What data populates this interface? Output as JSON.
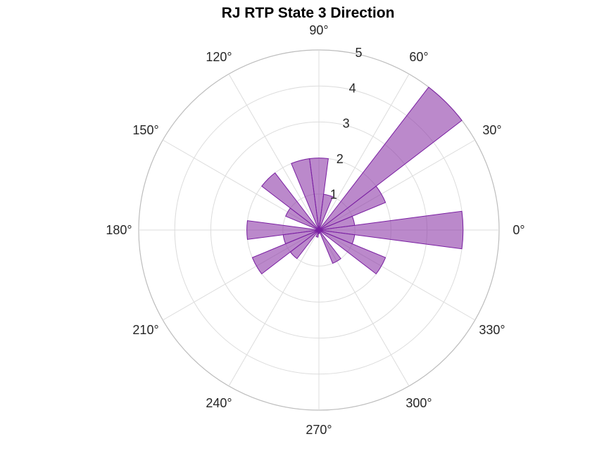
{
  "chart_data": {
    "type": "polar-histogram",
    "title": "RJ  RTP State 3 Direction",
    "r_ticks": [
      1,
      2,
      3,
      4,
      5
    ],
    "r_tick_labels": [
      "1",
      "2",
      "3",
      "4",
      "5"
    ],
    "r_max": 5,
    "theta_ticks_deg": [
      0,
      30,
      60,
      90,
      120,
      150,
      180,
      210,
      240,
      270,
      300,
      330
    ],
    "theta_tick_labels": [
      "0°",
      "30°",
      "60°",
      "90°",
      "120°",
      "150°",
      "180°",
      "210°",
      "240°",
      "270°",
      "300°",
      "330°"
    ],
    "bin_width_deg": 15,
    "bins": [
      {
        "center_deg": 0,
        "value": 4
      },
      {
        "center_deg": 15,
        "value": 1
      },
      {
        "center_deg": 30,
        "value": 2
      },
      {
        "center_deg": 45,
        "value": 5
      },
      {
        "center_deg": 75,
        "value": 1
      },
      {
        "center_deg": 90,
        "value": 2
      },
      {
        "center_deg": 105,
        "value": 2
      },
      {
        "center_deg": 135,
        "value": 2
      },
      {
        "center_deg": 150,
        "value": 1
      },
      {
        "center_deg": 180,
        "value": 2
      },
      {
        "center_deg": 195,
        "value": 1
      },
      {
        "center_deg": 210,
        "value": 2
      },
      {
        "center_deg": 225,
        "value": 1
      },
      {
        "center_deg": 255,
        "value": 0.2
      },
      {
        "center_deg": 270,
        "value": 0.1
      },
      {
        "center_deg": 300,
        "value": 1
      },
      {
        "center_deg": 330,
        "value": 2
      },
      {
        "center_deg": 345,
        "value": 1
      }
    ],
    "grid": true,
    "colors": {
      "bar_fill": "#8e3ba8",
      "bar_edge": "#7a1fa2",
      "grid": "#dcdcdc",
      "outer_ring": "#bdbdbd",
      "text": "#262626"
    }
  }
}
